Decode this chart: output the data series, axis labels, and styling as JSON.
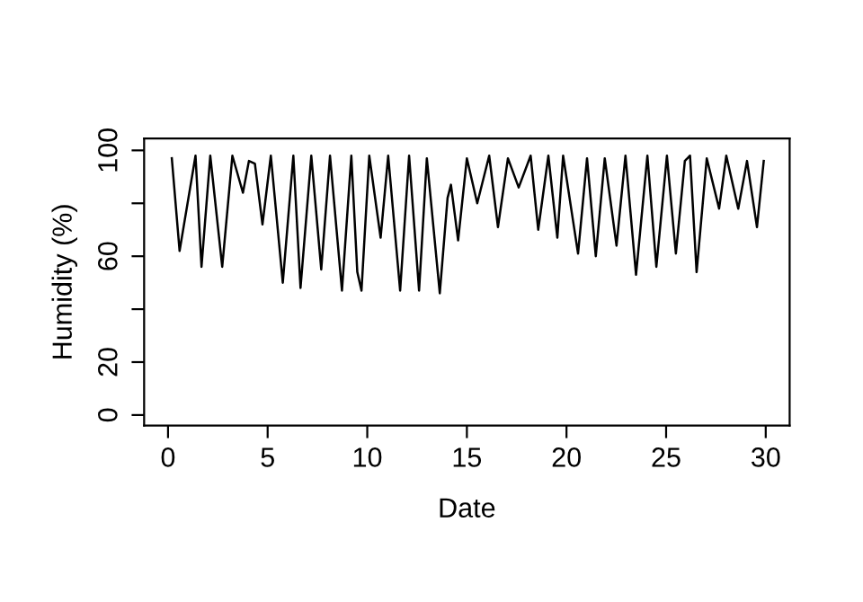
{
  "chart_data": {
    "type": "line",
    "xlabel": "Date",
    "ylabel": "Humidity (%)",
    "xlim": [
      -1.2,
      31.2
    ],
    "ylim": [
      -4,
      104.5
    ],
    "xticks": [
      0,
      5,
      10,
      15,
      20,
      25,
      30
    ],
    "yticks": [
      0,
      20,
      {
        "value": 40,
        "label": null
      },
      60,
      {
        "value": 80,
        "label": null
      },
      100
    ],
    "grid": false,
    "legend": false,
    "marker": "none",
    "line_style": "solid",
    "series": [
      {
        "color": "#000000",
        "x": [
          0.19,
          0.58,
          1.38,
          1.68,
          2.12,
          2.72,
          3.23,
          3.76,
          4.06,
          4.36,
          4.74,
          5.16,
          5.76,
          6.29,
          6.65,
          7.19,
          7.69,
          8.13,
          8.73,
          9.2,
          9.5,
          9.71,
          10.1,
          10.67,
          11.05,
          11.65,
          12.1,
          12.6,
          12.99,
          13.64,
          14.03,
          14.2,
          14.56,
          15.0,
          15.52,
          16.12,
          16.56,
          17.06,
          17.6,
          18.2,
          18.58,
          19.09,
          19.54,
          19.83,
          20.58,
          21.03,
          21.47,
          21.92,
          22.51,
          22.96,
          23.49,
          24.06,
          24.51,
          25.04,
          25.49,
          25.94,
          26.2,
          26.53,
          27.04,
          27.66,
          28.02,
          28.62,
          29.06,
          29.56,
          29.9
        ],
        "values": [
          97,
          62,
          98,
          56,
          98,
          56,
          98,
          84,
          96,
          95,
          72,
          98,
          50,
          98,
          48,
          98,
          55,
          98,
          47,
          98,
          54,
          47,
          98,
          67,
          98,
          47,
          98,
          47,
          97,
          46,
          82,
          87,
          66,
          97,
          80,
          98,
          71,
          97,
          86,
          98,
          70,
          98,
          67,
          98,
          61,
          97,
          60,
          97,
          64,
          98,
          53,
          98,
          56,
          98,
          61,
          96,
          98,
          54,
          97,
          78,
          98,
          78,
          96,
          71,
          96
        ]
      }
    ]
  }
}
